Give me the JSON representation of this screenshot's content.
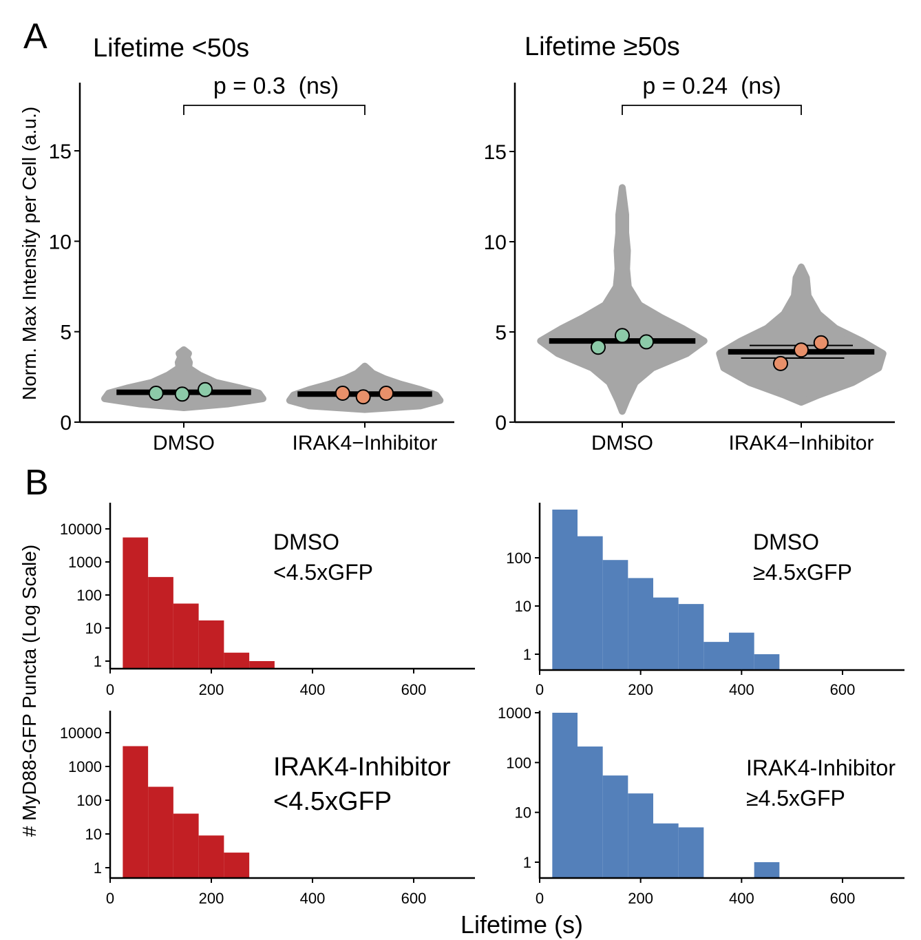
{
  "panel_labels": {
    "a": "A",
    "b": "B"
  },
  "figure": {
    "ylabel_a": "Norm. Max Intensity per Cell (a.u.)",
    "ylabel_b": "# MyD88-GFP Puncta (Log Scale)",
    "xlabel_b": "Lifetime (s)"
  },
  "colors": {
    "violin": "#a6a6a6",
    "dmso_point": "#8ccaa8",
    "irak4_point": "#e8906a",
    "hist_red": "#c21f24",
    "hist_blue": "#5480ba"
  },
  "chart_data": [
    {
      "type": "violin",
      "title": "Lifetime <50s",
      "categories": [
        "DMSO",
        "IRAK4−Inhibitor"
      ],
      "ylim": [
        0,
        18
      ],
      "yticks": [
        0,
        5,
        10,
        15
      ],
      "pvalue_label": "p = 0.3  (ns)",
      "series": [
        {
          "category": "DMSO",
          "range": [
            0.8,
            4.0
          ],
          "mean": 1.65,
          "replicates": [
            {
              "x": -0.35,
              "y": 1.6
            },
            {
              "x": -0.02,
              "y": 1.55
            },
            {
              "x": 0.27,
              "y": 1.8
            }
          ],
          "density": [
            [
              0.8,
              0.0
            ],
            [
              1.0,
              0.55
            ],
            [
              1.3,
              1.0
            ],
            [
              1.6,
              0.95
            ],
            [
              1.9,
              0.7
            ],
            [
              2.2,
              0.4
            ],
            [
              2.6,
              0.2
            ],
            [
              3.0,
              0.06
            ],
            [
              3.3,
              0.07
            ],
            [
              3.6,
              0.04
            ],
            [
              3.8,
              0.06
            ],
            [
              4.0,
              0.0
            ]
          ]
        },
        {
          "category": "IRAK4−Inhibitor",
          "range": [
            0.7,
            3.1
          ],
          "mean": 1.55,
          "replicates": [
            {
              "x": -0.28,
              "y": 1.6
            },
            {
              "x": -0.02,
              "y": 1.4
            },
            {
              "x": 0.27,
              "y": 1.6
            }
          ],
          "density": [
            [
              0.7,
              0.0
            ],
            [
              0.9,
              0.7
            ],
            [
              1.2,
              0.95
            ],
            [
              1.5,
              0.9
            ],
            [
              1.8,
              0.7
            ],
            [
              2.1,
              0.45
            ],
            [
              2.4,
              0.25
            ],
            [
              2.7,
              0.1
            ],
            [
              2.9,
              0.05
            ],
            [
              3.1,
              0.0
            ]
          ]
        }
      ]
    },
    {
      "type": "violin",
      "title": "Lifetime ≥50s",
      "categories": [
        "DMSO",
        "IRAK4−Inhibitor"
      ],
      "ylim": [
        0,
        18
      ],
      "yticks": [
        0,
        5,
        10,
        15
      ],
      "pvalue_label": "p = 0.24  (ns)",
      "series": [
        {
          "category": "DMSO",
          "range": [
            0.6,
            13.0
          ],
          "mean": 4.5,
          "replicates": [
            {
              "x": -0.28,
              "y": 4.15
            },
            {
              "x": 0.0,
              "y": 4.8
            },
            {
              "x": 0.28,
              "y": 4.45
            }
          ],
          "density": [
            [
              0.6,
              0.0
            ],
            [
              1.2,
              0.05
            ],
            [
              2.2,
              0.15
            ],
            [
              3.0,
              0.35
            ],
            [
              3.8,
              0.75
            ],
            [
              4.5,
              0.95
            ],
            [
              5.2,
              0.7
            ],
            [
              5.8,
              0.45
            ],
            [
              6.5,
              0.2
            ],
            [
              7.5,
              0.07
            ],
            [
              8.5,
              0.05
            ],
            [
              9.5,
              0.06
            ],
            [
              10.5,
              0.04
            ],
            [
              11.5,
              0.04
            ],
            [
              13.0,
              0.0
            ]
          ]
        },
        {
          "category": "IRAK4−Inhibitor",
          "range": [
            1.1,
            8.6
          ],
          "mean": 3.9,
          "replicates": [
            {
              "x": -0.24,
              "y": 3.25
            },
            {
              "x": 0.0,
              "y": 4.0
            },
            {
              "x": 0.23,
              "y": 4.4
            }
          ],
          "density": [
            [
              1.1,
              0.0
            ],
            [
              1.5,
              0.2
            ],
            [
              2.2,
              0.6
            ],
            [
              3.0,
              0.9
            ],
            [
              3.8,
              0.95
            ],
            [
              4.5,
              0.7
            ],
            [
              5.2,
              0.4
            ],
            [
              6.0,
              0.2
            ],
            [
              7.0,
              0.08
            ],
            [
              8.0,
              0.06
            ],
            [
              8.6,
              0.0
            ]
          ]
        }
      ]
    },
    {
      "type": "bar",
      "subtype": "histogram",
      "label": "DMSO\n<4.5xGFP",
      "yscale": "log",
      "xlim": [
        0,
        720
      ],
      "xticks": [
        0,
        200,
        400,
        600
      ],
      "yticks": [
        1,
        10,
        100,
        1000,
        10000
      ],
      "ylim": [
        0.5,
        40000
      ],
      "bin_width": 50,
      "bins": [
        [
          25,
          75,
          5500
        ],
        [
          75,
          125,
          350
        ],
        [
          125,
          175,
          55
        ],
        [
          175,
          225,
          17
        ],
        [
          225,
          275,
          1.8
        ],
        [
          275,
          325,
          1
        ]
      ]
    },
    {
      "type": "bar",
      "subtype": "histogram",
      "label": "DMSO\n≥4.5xGFP",
      "yscale": "log",
      "xlim": [
        0,
        720
      ],
      "xticks": [
        0,
        200,
        400,
        600
      ],
      "yticks": [
        1,
        10,
        100
      ],
      "ylim": [
        0.5,
        1000
      ],
      "bin_width": 50,
      "bins": [
        [
          25,
          75,
          1000
        ],
        [
          75,
          125,
          280
        ],
        [
          125,
          175,
          90
        ],
        [
          175,
          225,
          38
        ],
        [
          225,
          275,
          15
        ],
        [
          275,
          325,
          11
        ],
        [
          325,
          375,
          1.8
        ],
        [
          375,
          425,
          2.8
        ],
        [
          425,
          475,
          1
        ]
      ]
    },
    {
      "type": "bar",
      "subtype": "histogram",
      "label": "IRAK4-Inhibitor\n<4.5xGFP",
      "yscale": "log",
      "xlim": [
        0,
        720
      ],
      "xticks": [
        0,
        200,
        400,
        600
      ],
      "yticks": [
        1,
        10,
        100,
        1000,
        10000
      ],
      "ylim": [
        0.5,
        40000
      ],
      "bin_width": 50,
      "bins": [
        [
          25,
          75,
          4000
        ],
        [
          75,
          125,
          250
        ],
        [
          125,
          175,
          40
        ],
        [
          175,
          225,
          9
        ],
        [
          225,
          275,
          2.8
        ]
      ]
    },
    {
      "type": "bar",
      "subtype": "histogram",
      "label": "IRAK4-Inhibitor\n≥4.5xGFP",
      "yscale": "log",
      "xlim": [
        0,
        720
      ],
      "xticks": [
        0,
        200,
        400,
        600
      ],
      "yticks": [
        1,
        10,
        100,
        1000
      ],
      "ylim": [
        0.5,
        1000
      ],
      "bin_width": 50,
      "bins": [
        [
          25,
          75,
          1000
        ],
        [
          75,
          125,
          210
        ],
        [
          125,
          175,
          55
        ],
        [
          175,
          225,
          24
        ],
        [
          225,
          275,
          6
        ],
        [
          275,
          325,
          5
        ],
        [
          425,
          475,
          1
        ]
      ]
    }
  ]
}
